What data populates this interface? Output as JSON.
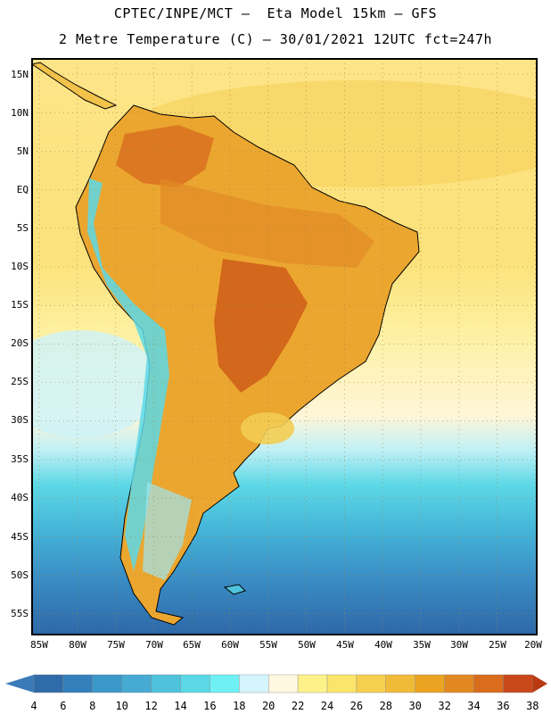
{
  "header": {
    "title_line1": "CPTEC/INPE/MCT –  Eta Model 15km – GFS",
    "title_line2": "2 Metre Temperature (C) – 30/01/2021 12UTC fct=247h"
  },
  "map": {
    "variable": "2 Metre Temperature",
    "units": "C",
    "latitude_labels": [
      "15N",
      "10N",
      "5N",
      "EQ",
      "5S",
      "10S",
      "15S",
      "20S",
      "25S",
      "30S",
      "35S",
      "40S",
      "45S",
      "50S",
      "55S"
    ],
    "longitude_labels": [
      "85W",
      "80W",
      "75W",
      "70W",
      "65W",
      "60W",
      "55W",
      "50W",
      "45W",
      "40W",
      "35W",
      "30W",
      "25W",
      "20W"
    ]
  },
  "colorbar": {
    "labels": [
      "4",
      "6",
      "8",
      "10",
      "12",
      "14",
      "16",
      "18",
      "20",
      "22",
      "24",
      "26",
      "28",
      "30",
      "32",
      "34",
      "36",
      "38"
    ],
    "colors": [
      "#2f6ba8",
      "#3480bd",
      "#3c97c9",
      "#46aad3",
      "#4fc2dc",
      "#5bd8e6",
      "#6ef0f5",
      "#d4f5fb",
      "#fff8e0",
      "#fdf28a",
      "#fbe56a",
      "#f7cf4e",
      "#f1bb3a",
      "#eba422",
      "#e28822",
      "#d96d1c",
      "#c8481a"
    ],
    "low_color": "#3a7ab8",
    "high_color": "#b83a12"
  }
}
